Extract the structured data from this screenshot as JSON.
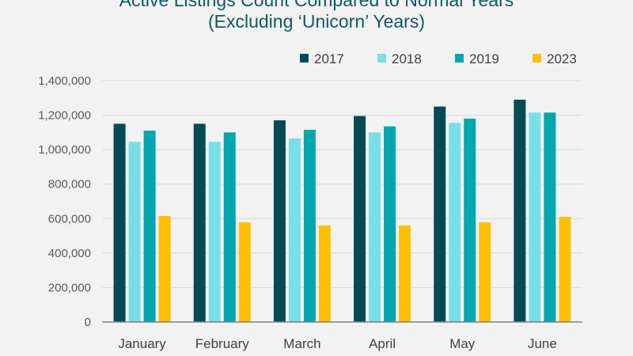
{
  "chart_data": {
    "type": "bar",
    "title_line1": "Active Listings Count Compared to Normal Years",
    "title_line2": "(Excluding ‘Unicorn’ Years)",
    "categories": [
      "January",
      "February",
      "March",
      "April",
      "May",
      "June"
    ],
    "series": [
      {
        "name": "2017",
        "color": "#004c55",
        "values": [
          1150000,
          1150000,
          1170000,
          1195000,
          1250000,
          1290000
        ]
      },
      {
        "name": "2018",
        "color": "#7adfe3",
        "values": [
          1045000,
          1045000,
          1065000,
          1100000,
          1155000,
          1215000
        ]
      },
      {
        "name": "2019",
        "color": "#00a7b0",
        "values": [
          1110000,
          1100000,
          1115000,
          1135000,
          1180000,
          1215000
        ]
      },
      {
        "name": "2023",
        "color": "#ffc000",
        "values": [
          615000,
          578000,
          560000,
          560000,
          578000,
          610000
        ]
      }
    ],
    "y_ticks": [
      "0",
      "200,000",
      "400,000",
      "600,000",
      "800,000",
      "1,000,000",
      "1,200,000",
      "1,400,000"
    ],
    "ylim": [
      0,
      1400000
    ],
    "grid": true,
    "legend_position": "top-right"
  }
}
